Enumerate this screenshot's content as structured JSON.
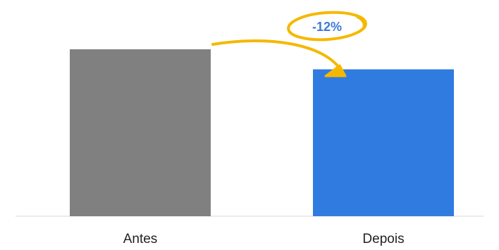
{
  "chart_data": {
    "type": "bar",
    "categories": [
      "Antes",
      "Depois"
    ],
    "values": [
      100,
      88
    ],
    "ylim": [
      0,
      100
    ],
    "grid": false,
    "legend": "none",
    "title": "",
    "xlabel": "",
    "ylabel": "",
    "bar_colors": [
      "#808080",
      "#2f7be0"
    ],
    "annotation": {
      "text": "-12%",
      "text_color": "#3d79d8",
      "highlight_color": "#f5b800"
    }
  },
  "colors": {
    "axis_line": "#d9d9d9",
    "label_text": "#222222"
  }
}
